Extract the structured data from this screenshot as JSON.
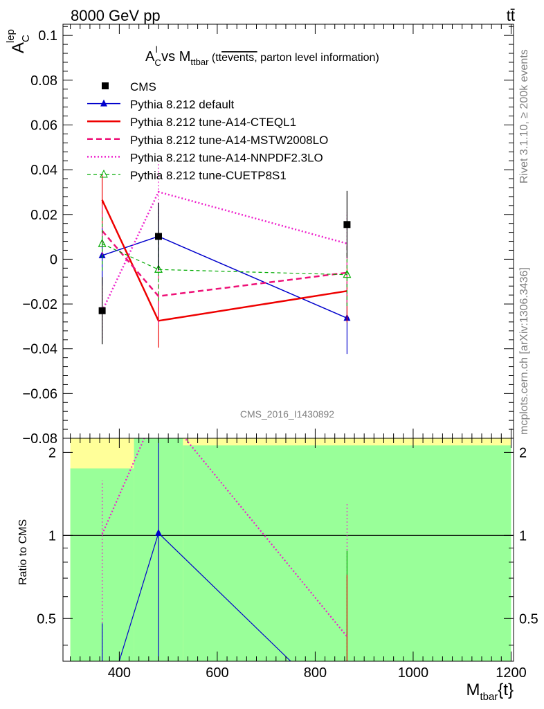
{
  "header": {
    "energy": "8000 GeV pp",
    "process": "tt̄"
  },
  "side_labels": {
    "rivet": "Rivet 3.1.10, ≥ 200k events",
    "source": "mcplots.cern.ch [arXiv:1306.3436]"
  },
  "chart_data": [
    {
      "type": "line",
      "title_main": "A",
      "title_sup": "l",
      "title_sub": "C",
      "title_vs": " vs M",
      "title_sub2": "ttbar",
      "title_paren_open": " (tt",
      "title_overline": "events,",
      "title_rest": " parton level information)",
      "ylabel_main": "A",
      "ylabel_sup": "lep",
      "ylabel_sub": "C",
      "watermark": "CMS_2016_I1430892",
      "ylim": [
        -0.08,
        0.105
      ],
      "xlim": [
        285,
        1205
      ],
      "yticks": [
        -0.08,
        -0.06,
        -0.04,
        -0.02,
        0,
        0.02,
        0.04,
        0.06,
        0.08,
        0.1
      ],
      "ytick_labels": [
        "−0.08",
        "−0.06",
        "−0.04",
        "−0.02",
        "0",
        "0.02",
        "0.04",
        "0.06",
        "0.08",
        "0.1"
      ],
      "x": [
        365,
        480,
        865
      ],
      "data": {
        "name": "CMS",
        "y": [
          -0.023,
          0.0102,
          0.0155
        ],
        "err": [
          0.015,
          0.015,
          0.015
        ],
        "color": "#000000"
      },
      "series": [
        {
          "name": "Pythia 8.212 default",
          "y": [
            0.0017,
            0.0102,
            -0.0263
          ],
          "err": [
            0.013,
            0.015,
            0.016
          ],
          "color": "#0000cc",
          "style": "solid",
          "width": 1.5,
          "marker": "triangle-filled"
        },
        {
          "name": "Pythia 8.212 tune-A14-CTEQL1",
          "y": [
            0.0265,
            -0.0275,
            -0.0142
          ],
          "err": [
            0.011,
            0.012,
            0.014
          ],
          "color": "#ee0000",
          "style": "solid",
          "width": 2.5,
          "marker": "none"
        },
        {
          "name": "Pythia 8.212 tune-A14-MSTW2008LO",
          "y": [
            0.0127,
            -0.0165,
            -0.006
          ],
          "err": [
            0.011,
            0.013,
            0.014
          ],
          "color": "#ee1177",
          "style": "dashed",
          "width": 2.5,
          "marker": "none"
        },
        {
          "name": "Pythia 8.212 tune-A14-NNPDF2.3LO",
          "y": [
            -0.0232,
            0.0301,
            0.007
          ],
          "err": [
            0.012,
            0.013,
            0.014
          ],
          "color": "#ee22cc",
          "style": "dotted",
          "width": 2.5,
          "marker": "none"
        },
        {
          "name": "Pythia 8.212 tune-CUETP8S1",
          "y": [
            0.0069,
            -0.0046,
            -0.0069
          ],
          "err": [
            0.012,
            0.014,
            0.014
          ],
          "color": "#00aa00",
          "style": "dashed-fine",
          "width": 1.2,
          "marker": "triangle-open"
        }
      ]
    },
    {
      "type": "line",
      "ylabel": "Ratio to CMS",
      "xlabel_main": "M",
      "xlabel_sub": "tbar",
      "xlabel_rest": "{t}",
      "ylim": [
        0.35,
        2.25
      ],
      "xlim": [
        285,
        1205
      ],
      "yticks": [
        0.5,
        1,
        2
      ],
      "ytick_labels": [
        "0.5",
        "1",
        "2"
      ],
      "xticks": [
        400,
        600,
        800,
        1000,
        1200
      ],
      "xtick_labels": [
        "400",
        "600",
        "800",
        "1000",
        "1200"
      ],
      "bands": {
        "yellow_color": "#ffff99",
        "green_color": "#99ff99",
        "bins": [
          {
            "x0": 300,
            "x1": 430,
            "yellow": [
              0.35,
              2.25
            ],
            "green": [
              0.35,
              1.75
            ]
          },
          {
            "x0": 430,
            "x1": 530,
            "yellow": [
              0.35,
              2.25
            ],
            "green": [
              0.35,
              2.25
            ]
          },
          {
            "x0": 530,
            "x1": 1200,
            "yellow": [
              0.35,
              2.25
            ],
            "green": [
              0.35,
              2.12
            ]
          }
        ]
      },
      "ratio_series": [
        {
          "name": "Pythia 8.212 default",
          "x": [
            365,
            480,
            750
          ],
          "y": [
            0.22,
            1.02,
            0.35
          ],
          "color": "#0000cc",
          "style": "solid",
          "width": 1.2
        },
        {
          "name": "Pythia 8.212 tune-A14-NNPDF2.3LO",
          "x": [
            365,
            480,
            865
          ],
          "y": [
            1.01,
            2.95,
            0.43
          ],
          "color": "#ee22cc",
          "style": "dotted",
          "width": 2.2
        }
      ],
      "ratio_errors": [
        {
          "x": 365,
          "lo": 0.35,
          "hi": 1.58,
          "color": "#ee22cc"
        },
        {
          "x": 365,
          "lo": 0.35,
          "hi": 0.48,
          "color": "#0000cc"
        },
        {
          "x": 480,
          "lo": 0.35,
          "hi": 2.25,
          "color": "#0000cc"
        },
        {
          "x": 865,
          "lo": 0.35,
          "hi": 1.32,
          "color": "#ee22cc"
        },
        {
          "x": 865,
          "lo": 0.35,
          "hi": 0.88,
          "color": "#00aa00"
        },
        {
          "x": 865,
          "lo": 0.35,
          "hi": 0.72,
          "color": "#ee0000"
        }
      ]
    }
  ]
}
